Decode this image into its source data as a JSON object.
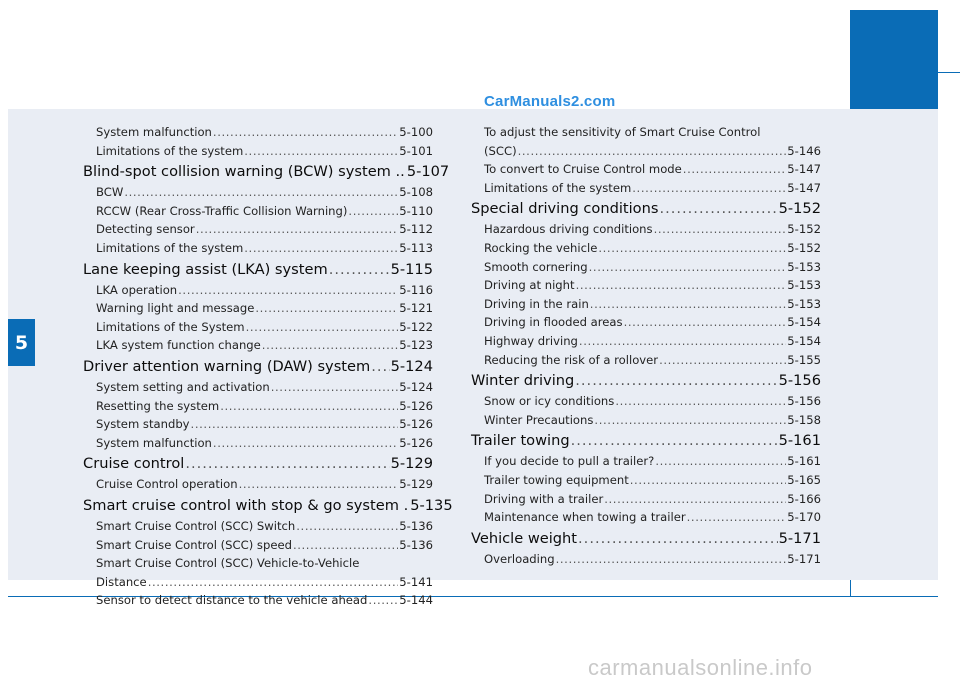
{
  "watermark_top": "CarManuals2.com",
  "watermark_bottom": "carmanualsonline.info",
  "chapter_number": "5",
  "left_column": [
    {
      "type": "sub",
      "title": "System malfunction",
      "page": "5-100"
    },
    {
      "type": "sub",
      "title": "Limitations of the system",
      "page": "5-101"
    },
    {
      "type": "head",
      "title": "Blind-spot collision warning (BCW) system ..",
      "page": "5-107"
    },
    {
      "type": "sub",
      "title": "BCW",
      "page": "5-108"
    },
    {
      "type": "sub",
      "title": "RCCW (Rear Cross-Traffic Collision Warning)",
      "page": "5-110"
    },
    {
      "type": "sub",
      "title": "Detecting sensor",
      "page": "5-112"
    },
    {
      "type": "sub",
      "title": "Limitations of the system",
      "page": "5-113"
    },
    {
      "type": "head",
      "title": "Lane keeping assist (LKA) system",
      "page": "5-115"
    },
    {
      "type": "sub",
      "title": "LKA operation",
      "page": "5-116"
    },
    {
      "type": "sub",
      "title": "Warning light and message",
      "page": "5-121"
    },
    {
      "type": "sub",
      "title": "Limitations of the System",
      "page": "5-122"
    },
    {
      "type": "sub",
      "title": "LKA system function change",
      "page": "5-123"
    },
    {
      "type": "head",
      "title": "Driver attention warning (DAW) system",
      "page": "5-124"
    },
    {
      "type": "sub",
      "title": "System setting and activation",
      "page": "5-124"
    },
    {
      "type": "sub",
      "title": "Resetting the system",
      "page": "5-126"
    },
    {
      "type": "sub",
      "title": "System standby",
      "page": "5-126"
    },
    {
      "type": "sub",
      "title": "System malfunction",
      "page": "5-126"
    },
    {
      "type": "head",
      "title": "Cruise control",
      "page": "5-129"
    },
    {
      "type": "sub",
      "title": "Cruise Control operation",
      "page": "5-129"
    },
    {
      "type": "head",
      "title": "Smart cruise control with stop & go system .",
      "page": "5-135"
    },
    {
      "type": "sub",
      "title": "Smart Cruise Control (SCC) Switch",
      "page": "5-136"
    },
    {
      "type": "sub",
      "title": "Smart Cruise Control (SCC) speed",
      "page": "5-136"
    },
    {
      "type": "plain",
      "title": "Smart Cruise Control (SCC) Vehicle-to-Vehicle"
    },
    {
      "type": "sub",
      "title": "Distance",
      "page": "5-141"
    },
    {
      "type": "sub",
      "title": "Sensor to detect distance to the vehicle ahead",
      "page": "5-144"
    }
  ],
  "right_column": [
    {
      "type": "plain",
      "title": "To adjust the sensitivity of Smart Cruise Control"
    },
    {
      "type": "sub",
      "title": "(SCC)",
      "page": "5-146"
    },
    {
      "type": "sub",
      "title": "To convert to Cruise Control mode",
      "page": "5-147"
    },
    {
      "type": "sub",
      "title": "Limitations of the system",
      "page": "5-147"
    },
    {
      "type": "head",
      "title": "Special driving conditions",
      "page": "5-152"
    },
    {
      "type": "sub",
      "title": "Hazardous driving conditions",
      "page": "5-152"
    },
    {
      "type": "sub",
      "title": "Rocking the vehicle",
      "page": "5-152"
    },
    {
      "type": "sub",
      "title": "Smooth cornering",
      "page": "5-153"
    },
    {
      "type": "sub",
      "title": "Driving at night",
      "page": "5-153"
    },
    {
      "type": "sub",
      "title": "Driving in the rain",
      "page": "5-153"
    },
    {
      "type": "sub",
      "title": "Driving in flooded areas",
      "page": "5-154"
    },
    {
      "type": "sub",
      "title": "Highway driving",
      "page": "5-154"
    },
    {
      "type": "sub",
      "title": "Reducing the risk of a rollover",
      "page": "5-155"
    },
    {
      "type": "head",
      "title": "Winter driving",
      "page": "5-156"
    },
    {
      "type": "sub",
      "title": "Snow or icy conditions",
      "page": "5-156"
    },
    {
      "type": "sub",
      "title": "Winter Precautions",
      "page": "5-158"
    },
    {
      "type": "head",
      "title": "Trailer towing",
      "page": "5-161"
    },
    {
      "type": "sub",
      "title": "If you decide to pull a trailer?",
      "page": "5-161"
    },
    {
      "type": "sub",
      "title": "Trailer towing equipment",
      "page": "5-165"
    },
    {
      "type": "sub",
      "title": "Driving with a trailer",
      "page": "5-166"
    },
    {
      "type": "sub",
      "title": "Maintenance when towing a trailer",
      "page": "5-170"
    },
    {
      "type": "head",
      "title": "Vehicle weight",
      "page": "5-171"
    },
    {
      "type": "sub",
      "title": "Overloading",
      "page": "5-171"
    }
  ]
}
